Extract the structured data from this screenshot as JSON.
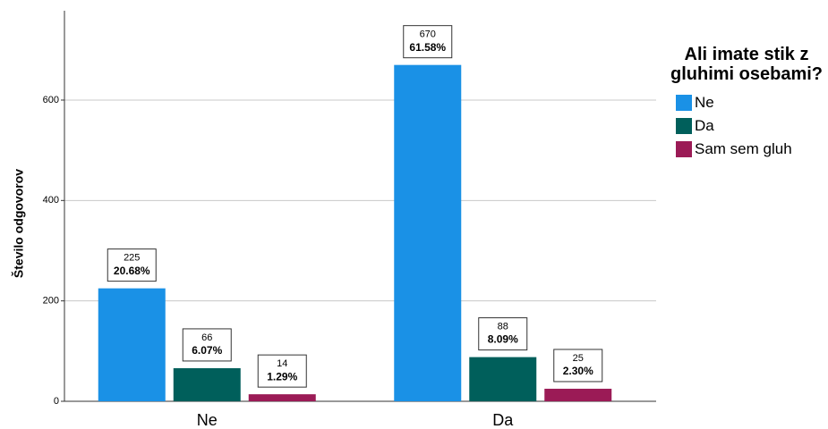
{
  "chart_data": {
    "type": "bar",
    "categories": [
      "Ne",
      "Da"
    ],
    "y_label": "Število odgovorov",
    "legend_title": "Ali imate stik z gluhimi osebami?",
    "legend_position": "right",
    "series": [
      {
        "name": "Ne",
        "color": "#1a91e6",
        "values": [
          225,
          670
        ],
        "percents": [
          20.68,
          61.58
        ],
        "percent_labels": [
          "20.68%",
          "61.58%"
        ]
      },
      {
        "name": "Da",
        "color": "#005f5b",
        "values": [
          66,
          88
        ],
        "percents": [
          6.07,
          8.09
        ],
        "percent_labels": [
          "6.07%",
          "8.09%"
        ]
      },
      {
        "name": "Sam sem gluh",
        "color": "#9b1b56",
        "values": [
          14,
          25
        ],
        "percents": [
          1.29,
          2.3
        ],
        "percent_labels": [
          "1.29%",
          "2.30%"
        ]
      }
    ],
    "ylim": [
      0,
      778
    ],
    "yticks": [
      0,
      200,
      400,
      600
    ],
    "grid": true
  }
}
